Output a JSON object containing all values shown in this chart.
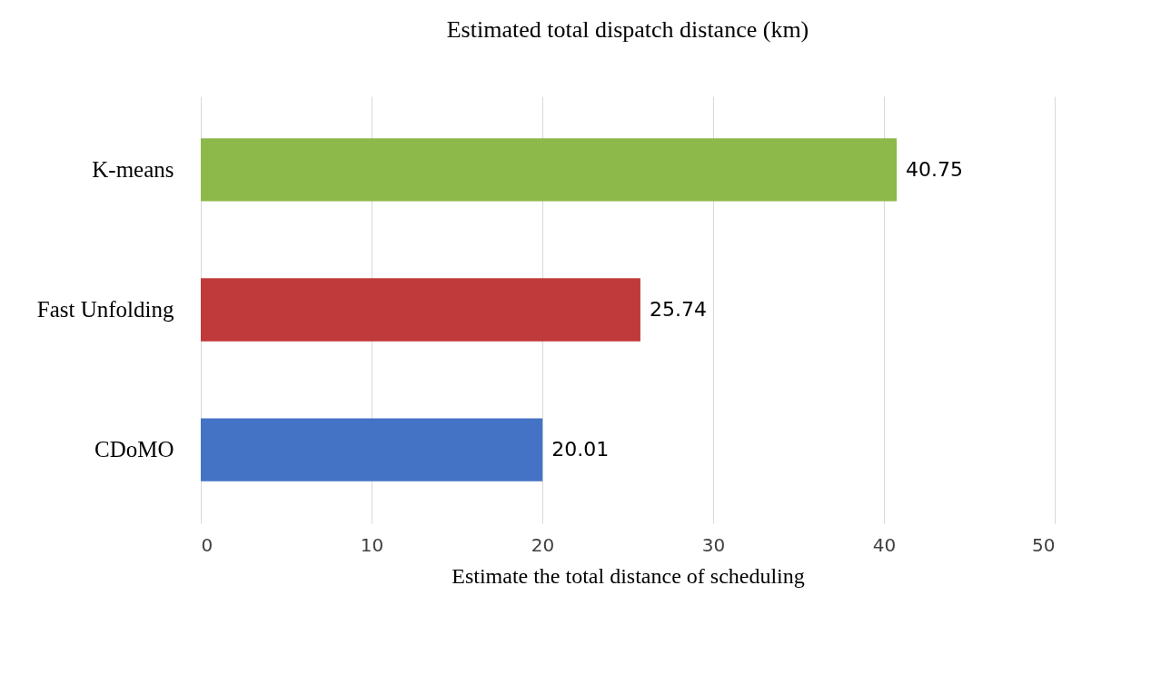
{
  "chart_data": {
    "type": "bar",
    "orientation": "horizontal",
    "title": "Estimated total dispatch distance (km)",
    "xlabel": "Estimate the total distance of scheduling",
    "categories": [
      "K-means",
      "Fast Unfolding",
      "CDoMO"
    ],
    "values": [
      40.75,
      25.74,
      20.01
    ],
    "colors": [
      "#8db84a",
      "#c0393b",
      "#4472c4"
    ],
    "xlim": [
      0,
      50
    ],
    "xticks": [
      0,
      10,
      20,
      30,
      40,
      50
    ],
    "grid": "x",
    "data_labels": true
  }
}
